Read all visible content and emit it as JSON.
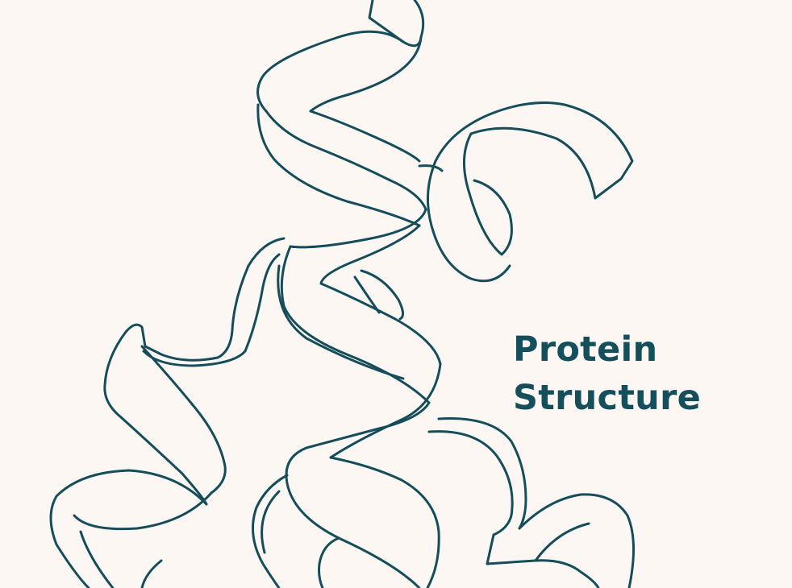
{
  "illustration": {
    "icon": "protein-ribbon-illustration",
    "stroke_color": "#164d5a",
    "background_color": "#fcf7f3"
  },
  "title": {
    "line1": "Protein",
    "line2": "Structure",
    "color": "#154f5c"
  }
}
